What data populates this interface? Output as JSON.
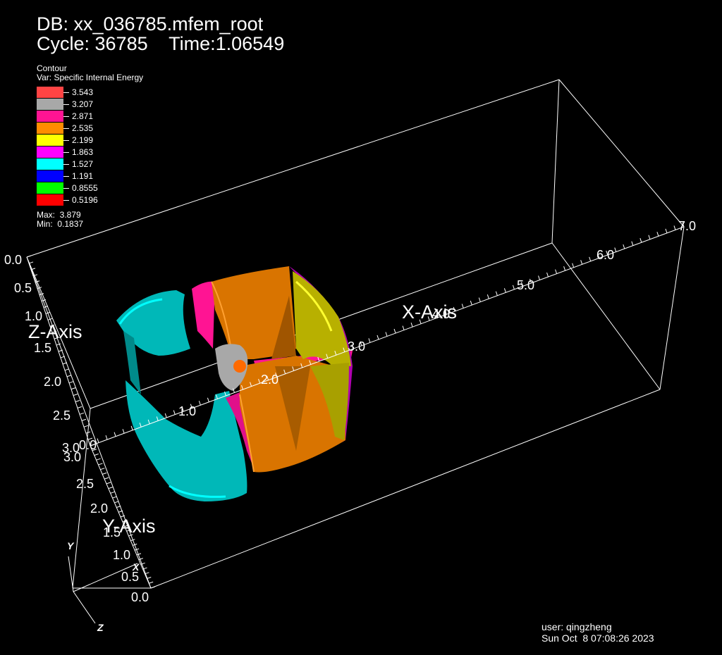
{
  "header": {
    "db_label": "DB: xx_036785.mfem_root",
    "cycle_time": "Cycle: 36785    Time:1.06549"
  },
  "legend": {
    "plot_type": "Contour",
    "variable": "Var: Specific Internal Energy",
    "levels": [
      {
        "value": "3.543",
        "color": "#ff4444"
      },
      {
        "value": "3.207",
        "color": "#a8a8a8"
      },
      {
        "value": "2.871",
        "color": "#ff1493"
      },
      {
        "value": "2.535",
        "color": "#ff8c00"
      },
      {
        "value": "2.199",
        "color": "#ffff00"
      },
      {
        "value": "1.863",
        "color": "#ff00ff"
      },
      {
        "value": "1.527",
        "color": "#00ffff"
      },
      {
        "value": "1.191",
        "color": "#0000ff"
      },
      {
        "value": "0.8555",
        "color": "#00ff00"
      },
      {
        "value": "0.5196",
        "color": "#ff0000"
      }
    ],
    "max": "Max:  3.879",
    "min": "Min:  0.1837"
  },
  "axes": {
    "x_title": "X-Axis",
    "y_title": "Y-Axis",
    "z_title": "Z-Axis",
    "x_ticks": [
      "1.0",
      "2.0",
      "3.0",
      "4.0",
      "5.0",
      "6.0",
      "7.0"
    ],
    "z_ticks": [
      "0.0",
      "0.5",
      "1.0",
      "1.5",
      "2.0",
      "2.5",
      "3.0"
    ],
    "y_ticks": [
      "3.0",
      "2.5",
      "2.0",
      "1.5",
      "1.0",
      "0.5",
      "0.0"
    ],
    "origin_label": "0.0",
    "triad": {
      "x": "X",
      "y": "Y",
      "z": "Z"
    }
  },
  "footer": {
    "user": "user: qingzheng",
    "date": "Sun Oct  8 07:08:26 2023"
  }
}
